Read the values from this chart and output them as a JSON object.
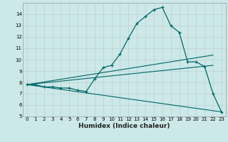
{
  "xlabel": "Humidex (Indice chaleur)",
  "ylabel": "",
  "background_color": "#cce8e8",
  "line_color": "#006666",
  "xlim": [
    -0.5,
    23.5
  ],
  "ylim": [
    5,
    15
  ],
  "yticks": [
    5,
    6,
    7,
    8,
    9,
    10,
    11,
    12,
    13,
    14
  ],
  "xticks": [
    0,
    1,
    2,
    3,
    4,
    5,
    6,
    7,
    8,
    9,
    10,
    11,
    12,
    13,
    14,
    15,
    16,
    17,
    18,
    19,
    20,
    21,
    22,
    23
  ],
  "series1_x": [
    0,
    1,
    2,
    3,
    4,
    5,
    6,
    7,
    8,
    9,
    10,
    11,
    12,
    13,
    14,
    15,
    16,
    17,
    18,
    19,
    20,
    21,
    22,
    23
  ],
  "series1_y": [
    7.8,
    7.8,
    7.6,
    7.6,
    7.5,
    7.5,
    7.3,
    7.2,
    8.3,
    9.3,
    9.5,
    10.5,
    11.9,
    13.2,
    13.8,
    14.4,
    14.6,
    13.0,
    12.4,
    9.8,
    9.8,
    9.4,
    7.0,
    5.4
  ],
  "series2_x": [
    0,
    22
  ],
  "series2_y": [
    7.8,
    10.4
  ],
  "series3_x": [
    0,
    23
  ],
  "series3_y": [
    7.8,
    5.4
  ],
  "series4_x": [
    0,
    22
  ],
  "series4_y": [
    7.8,
    9.5
  ]
}
